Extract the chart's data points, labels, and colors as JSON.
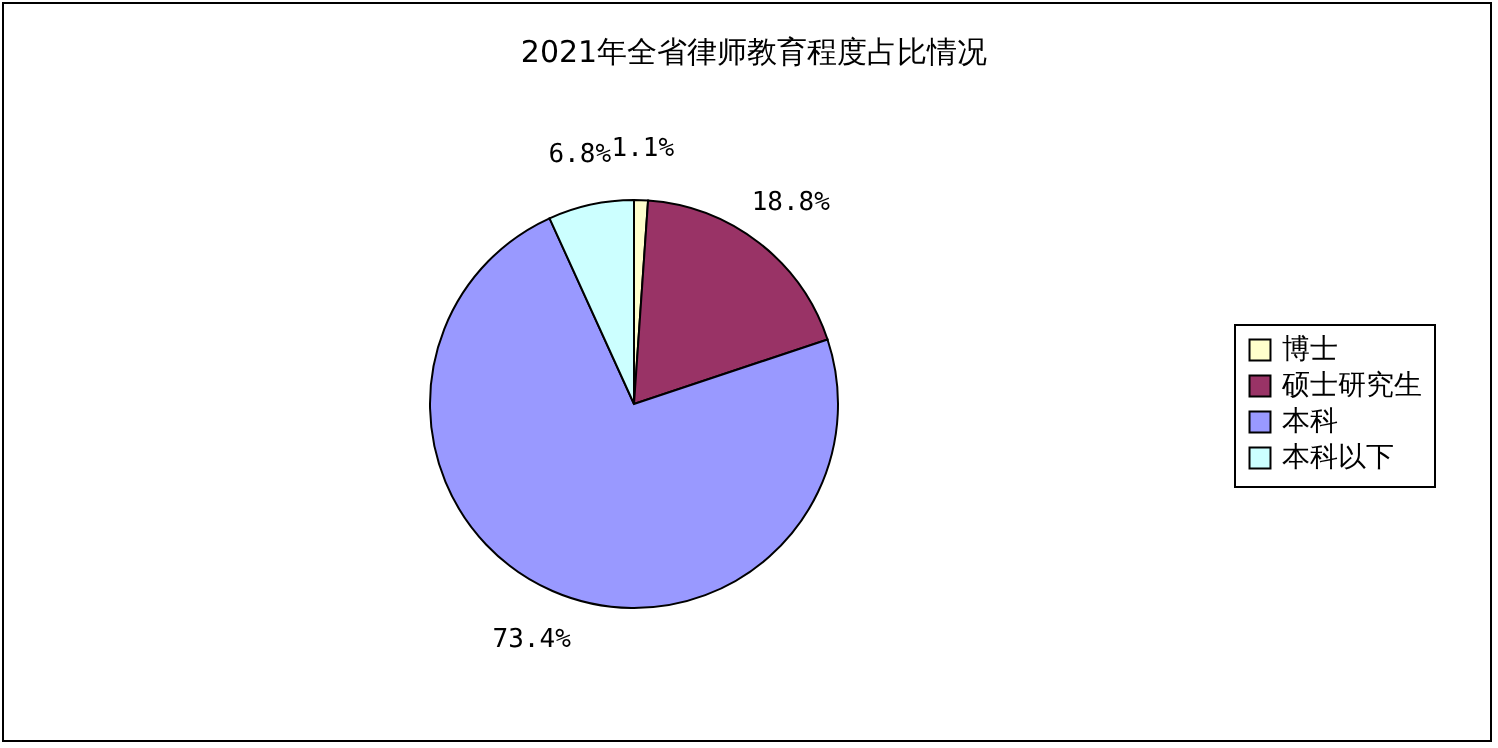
{
  "chart_data": {
    "type": "pie",
    "title": "2021年全省律师教育程度占比情况",
    "categories": [
      "博士",
      "硕士研究生",
      "本科",
      "本科以下"
    ],
    "values": [
      1.1,
      18.8,
      73.4,
      6.8
    ],
    "value_labels": [
      "1.1%",
      "18.8%",
      "73.4%",
      "6.8%"
    ],
    "colors": [
      "#ffffcc",
      "#993366",
      "#9999ff",
      "#ccffff"
    ],
    "legend": "right"
  }
}
